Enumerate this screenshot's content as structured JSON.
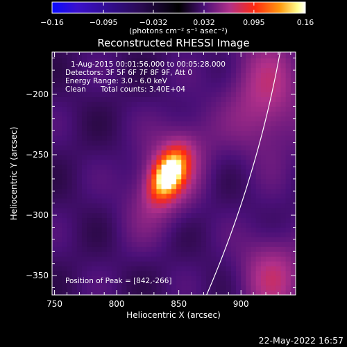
{
  "colorbar": {
    "ticks": [
      "−0.16",
      "−0.095",
      "−0.032",
      "0.032",
      "0.095",
      "0.16"
    ],
    "tick_values": [
      -0.16,
      -0.095,
      -0.032,
      0.032,
      0.095,
      0.16
    ],
    "range": [
      -0.16,
      0.16
    ],
    "units": "(photons cm⁻² s⁻¹ asec⁻²)",
    "colors": [
      "#0a0aff",
      "#3a10cc",
      "#2a0a52",
      "#000000",
      "#4a1078",
      "#b0308a",
      "#ff2a10",
      "#ff9a10",
      "#ffff90",
      "#ffffff"
    ]
  },
  "chart_data": {
    "type": "heatmap",
    "title": "Reconstructed RHESSI Image",
    "xlabel": "Heliocentric X (arcsec)",
    "ylabel": "Heliocentric Y (arcsec)",
    "xlim": [
      748,
      944
    ],
    "ylim": [
      -366,
      -165
    ],
    "xticks": [
      750,
      800,
      850,
      900
    ],
    "xtick_labels": [
      "750",
      "800",
      "850",
      "900"
    ],
    "yticks": [
      -200,
      -250,
      -300,
      -350
    ],
    "ytick_labels": [
      "−200",
      "−250",
      "−300",
      "−350"
    ],
    "peak": [
      842,
      -266
    ],
    "source_sigma_arcsec": [
      18,
      32
    ],
    "source_rotation_deg": 25,
    "limb_arc": {
      "center": [
        0,
        0
      ],
      "radius_arcsec": 946
    }
  },
  "annotations": {
    "time_range": "1-Aug-2015 00:01:56.000 to 00:05:28.000",
    "detectors": "Detectors: 3F 5F 6F 7F 8F 9F, Att 0",
    "energy_range": "Energy Range: 3.0 - 6.0 keV",
    "clean_label": "Clean",
    "total_counts": "Total counts: 3.40E+04",
    "peak_position": "Position of Peak = [842,-266]"
  },
  "footer": {
    "date": "22-May-2022 16:57"
  }
}
